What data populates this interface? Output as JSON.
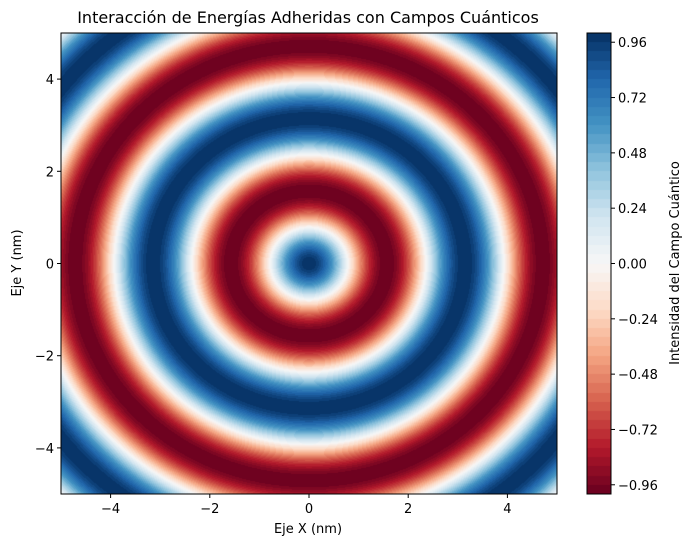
{
  "chart_data": {
    "type": "heatmap",
    "title": "Interacción de Energías Adheridas con Campos Cuánticos",
    "xlabel": "Eje X (nm)",
    "ylabel": "Eje Y (nm)",
    "xlim": [
      -5,
      5
    ],
    "ylim": [
      -5,
      5
    ],
    "x_ticks": [
      -4,
      -2,
      0,
      2,
      4
    ],
    "y_ticks": [
      -4,
      -2,
      0,
      2,
      4
    ],
    "x_tick_labels": [
      "−4",
      "−2",
      "0",
      "2",
      "4"
    ],
    "y_tick_labels": [
      "−4",
      "−2",
      "0",
      "2",
      "4"
    ],
    "function": "cos(sqrt(x^2 + y^2) * 2)",
    "colormap": "RdBu",
    "colorbar": {
      "label": "Intensidad del Campo Cuántico",
      "range": [
        -1,
        1
      ],
      "ticks": [
        0.96,
        0.72,
        0.48,
        0.24,
        0.0,
        -0.24,
        -0.48,
        -0.72,
        -0.96
      ],
      "tick_labels": [
        "0.96",
        "0.72",
        "0.48",
        "0.24",
        "0.00",
        "−0.24",
        "−0.48",
        "−0.72",
        "−0.96"
      ]
    },
    "grid": false
  }
}
